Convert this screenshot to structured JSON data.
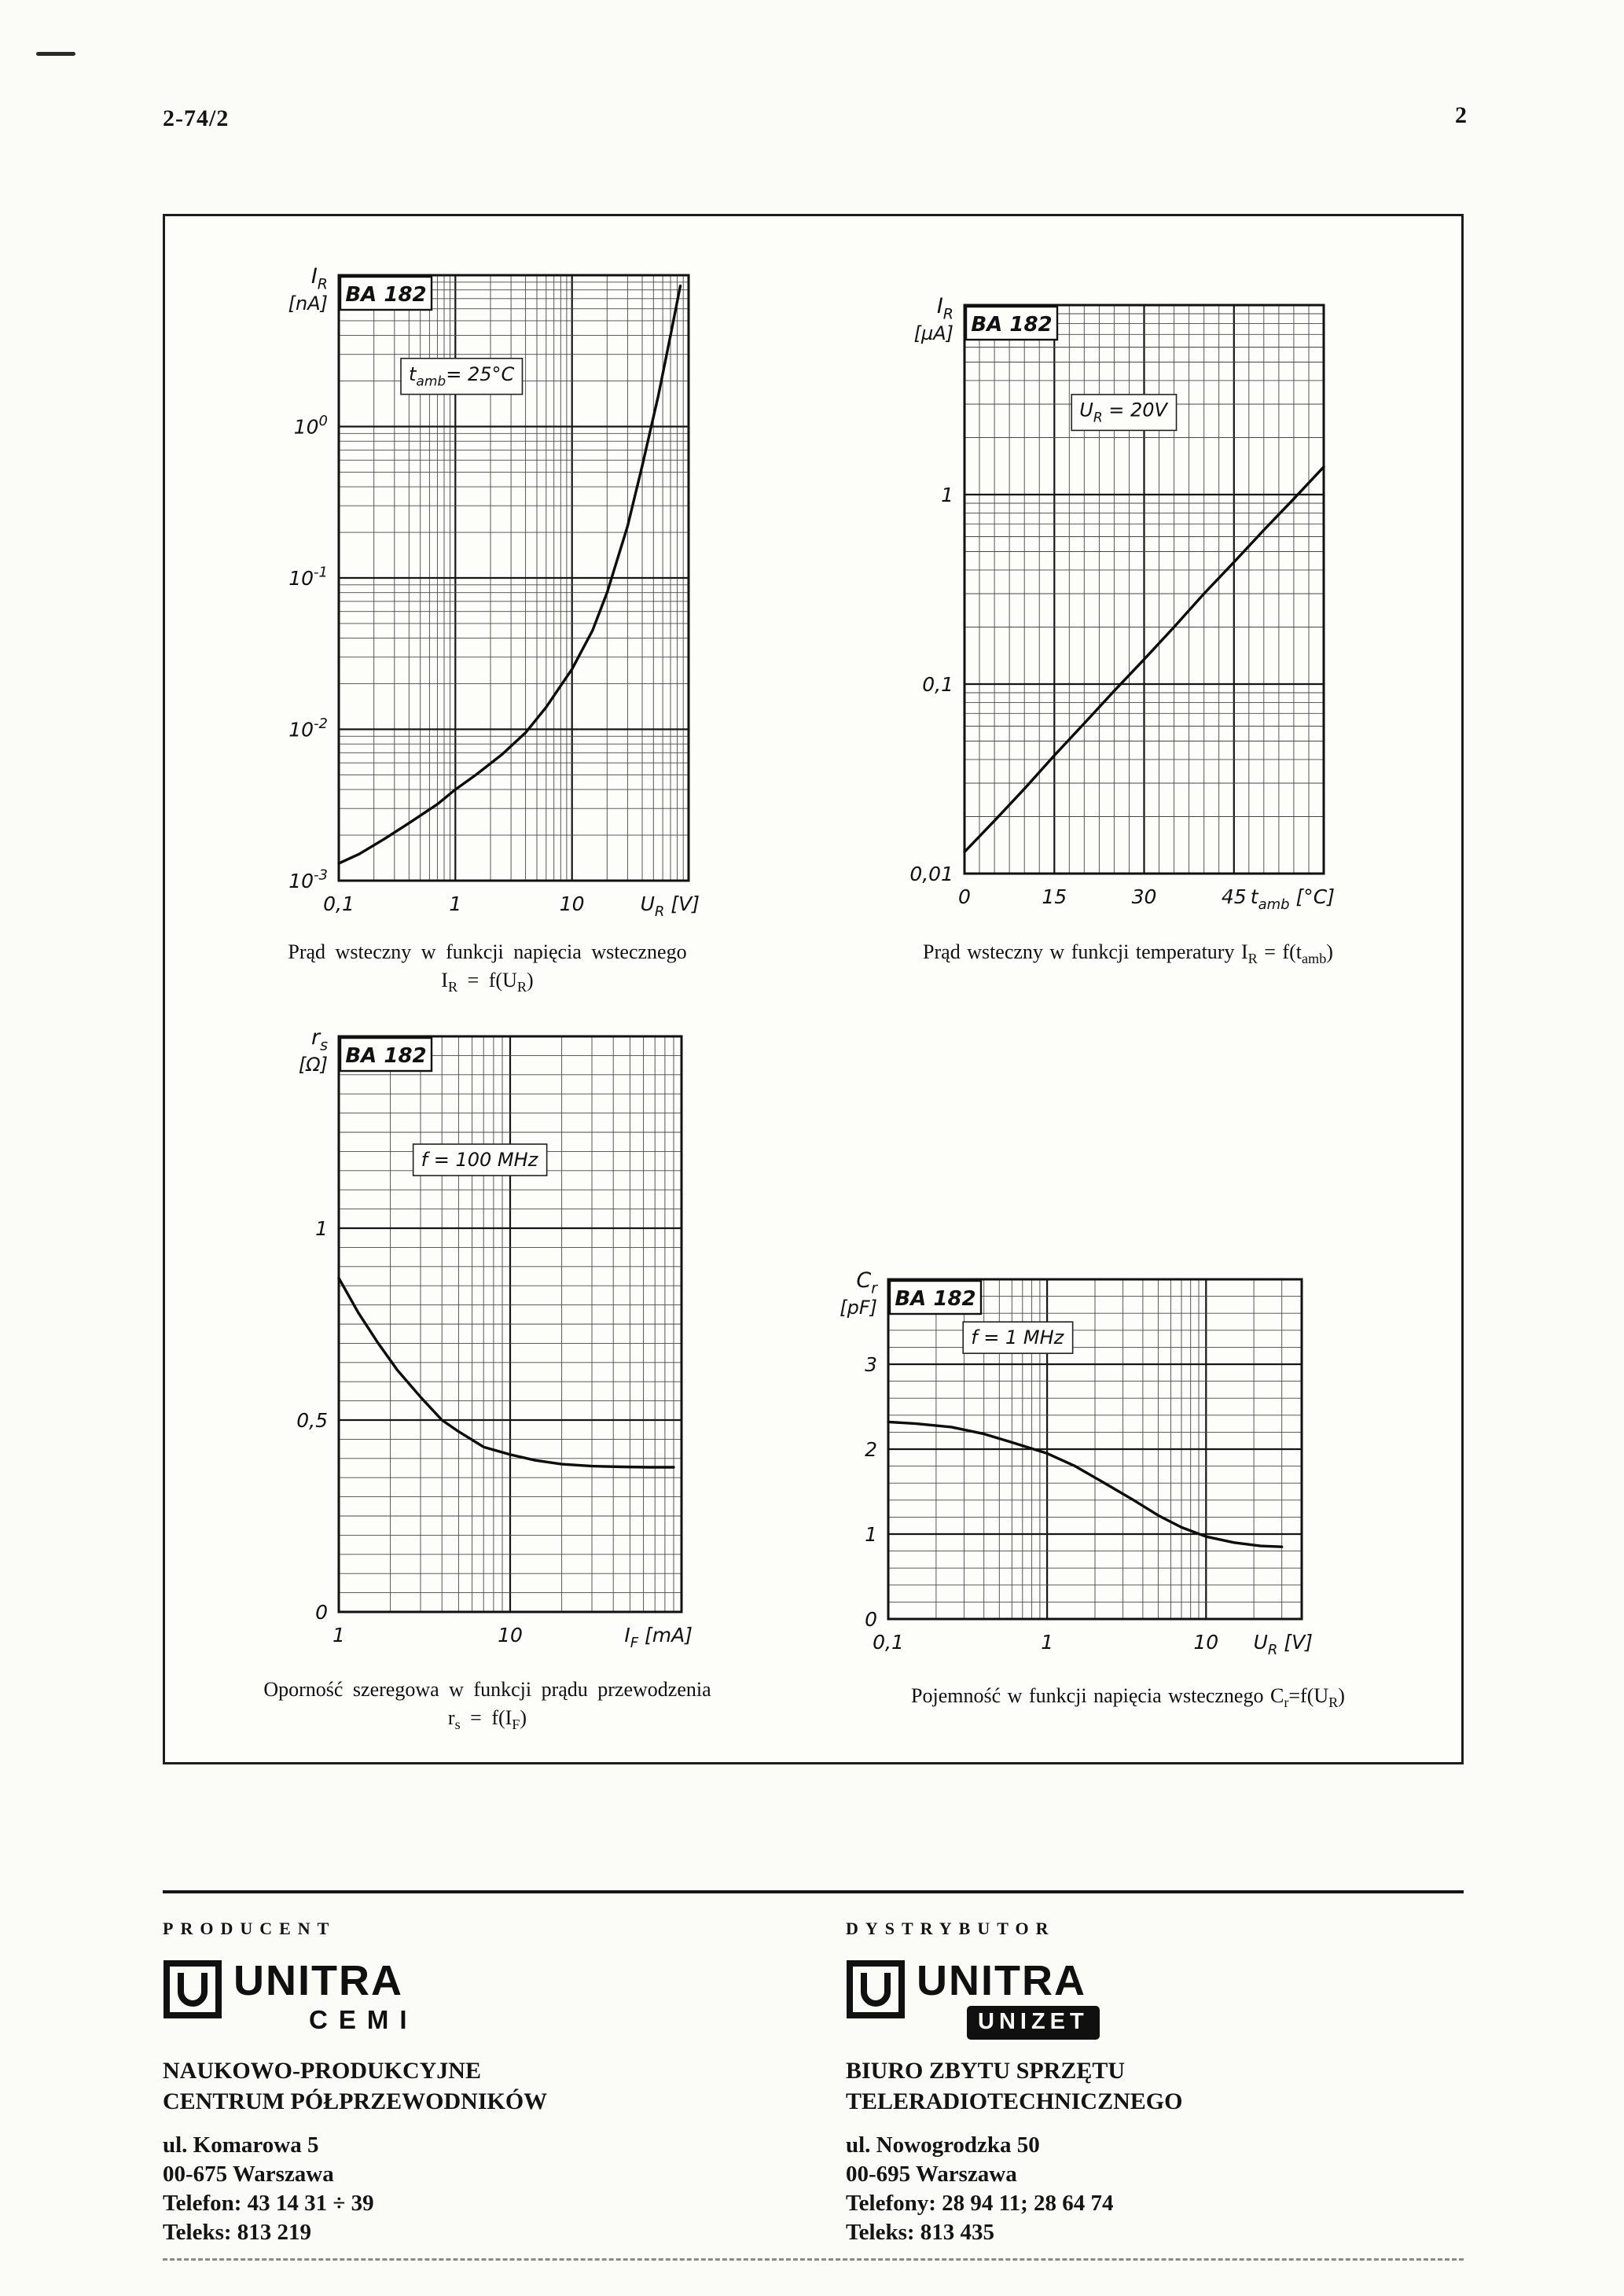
{
  "page": {
    "doc_number": "2-74/2",
    "page_number": "2"
  },
  "chart_data": [
    {
      "type": "line",
      "device": "BA 182",
      "annotation": "t_{amb}= 25°C",
      "ylabel": [
        "I_{R}",
        "[nA]"
      ],
      "x": {
        "scale": "log",
        "min": 0.1,
        "max": 100,
        "unit": "U_{R} [V]",
        "ticks": [
          [
            "0,1",
            0.1
          ],
          [
            "1",
            1
          ],
          [
            "10",
            10
          ]
        ]
      },
      "y": {
        "scale": "log",
        "min": 0.001,
        "max": 10,
        "ticks": [
          [
            "10^{0}",
            1
          ],
          [
            "10^{-1}",
            0.1
          ],
          [
            "10^{-2}",
            0.01
          ],
          [
            "10^{-3}",
            0.001
          ]
        ]
      },
      "points": [
        [
          0.1,
          0.0013
        ],
        [
          0.15,
          0.0015
        ],
        [
          0.25,
          0.0019
        ],
        [
          0.4,
          0.0024
        ],
        [
          0.7,
          0.0032
        ],
        [
          1,
          0.004
        ],
        [
          1.5,
          0.005
        ],
        [
          2.5,
          0.0068
        ],
        [
          4,
          0.0095
        ],
        [
          6,
          0.014
        ],
        [
          10,
          0.025
        ],
        [
          15,
          0.045
        ],
        [
          20,
          0.08
        ],
        [
          30,
          0.22
        ],
        [
          40,
          0.55
        ],
        [
          55,
          1.6
        ],
        [
          70,
          4
        ],
        [
          85,
          8.5
        ]
      ],
      "caption": [
        "Prąd wsteczny w funkcji napięcia wstecznego",
        "I_{R} = f(U_{R})"
      ]
    },
    {
      "type": "line",
      "device": "BA 182",
      "annotation": "U_{R} = 20V",
      "ylabel": [
        "I_{R}",
        "[µA]"
      ],
      "x": {
        "scale": "linear",
        "min": 0,
        "max": 60,
        "minor": 2.5,
        "major": 15,
        "unit": "t_{amb} [°C]",
        "ticks": [
          [
            "0",
            0
          ],
          [
            "15",
            15
          ],
          [
            "30",
            30
          ],
          [
            "45",
            45
          ]
        ]
      },
      "y": {
        "scale": "log",
        "min": 0.01,
        "max": 10,
        "ticks": [
          [
            "1",
            1
          ],
          [
            "0,1",
            0.1
          ],
          [
            "0,01",
            0.01
          ]
        ]
      },
      "points": [
        [
          0,
          0.013
        ],
        [
          5,
          0.019
        ],
        [
          10,
          0.028
        ],
        [
          15,
          0.042
        ],
        [
          20,
          0.062
        ],
        [
          25,
          0.092
        ],
        [
          30,
          0.135
        ],
        [
          35,
          0.2
        ],
        [
          40,
          0.3
        ],
        [
          45,
          0.44
        ],
        [
          50,
          0.65
        ],
        [
          55,
          0.95
        ],
        [
          60,
          1.4
        ]
      ],
      "caption": [
        "Prąd wsteczny w funkcji temperatury I_{R} = f(t_{amb})"
      ]
    },
    {
      "type": "line",
      "device": "BA 182",
      "annotation": "f = 100 MHz",
      "ylabel": [
        "r_{s}",
        "[Ω]"
      ],
      "x": {
        "scale": "log",
        "min": 1,
        "max": 100,
        "unit": "I_{F} [mA]",
        "ticks": [
          [
            "1",
            1
          ],
          [
            "10",
            10
          ]
        ]
      },
      "y": {
        "scale": "linear",
        "min": 0,
        "max": 1.5,
        "minor": 0.05,
        "major": 0.5,
        "ticks": [
          [
            "1",
            1
          ],
          [
            "0,5",
            0.5
          ],
          [
            "0",
            0
          ]
        ]
      },
      "points": [
        [
          1,
          0.87
        ],
        [
          1.3,
          0.78
        ],
        [
          1.7,
          0.7
        ],
        [
          2.2,
          0.63
        ],
        [
          3,
          0.56
        ],
        [
          4,
          0.5
        ],
        [
          5,
          0.47
        ],
        [
          7,
          0.43
        ],
        [
          10,
          0.41
        ],
        [
          14,
          0.395
        ],
        [
          20,
          0.385
        ],
        [
          30,
          0.38
        ],
        [
          45,
          0.378
        ],
        [
          65,
          0.377
        ],
        [
          90,
          0.377
        ]
      ],
      "caption": [
        "Oporność szeregowa w funkcji prądu przewodzenia",
        "r_{s} = f(I_{F})"
      ]
    },
    {
      "type": "line",
      "device": "BA 182",
      "annotation": "f = 1 MHz",
      "ylabel": [
        "C_{r}",
        "[pF]"
      ],
      "x": {
        "scale": "log",
        "min": 0.1,
        "max": 40,
        "unit": "U_{R} [V]",
        "ticks": [
          [
            "0,1",
            0.1
          ],
          [
            "1",
            1
          ],
          [
            "10",
            10
          ]
        ]
      },
      "y": {
        "scale": "linear",
        "min": 0,
        "max": 4,
        "minor": 0.2,
        "major": 1,
        "ticks": [
          [
            "3",
            3
          ],
          [
            "2",
            2
          ],
          [
            "1",
            1
          ],
          [
            "0",
            0
          ]
        ]
      },
      "points": [
        [
          0.1,
          2.32
        ],
        [
          0.15,
          2.3
        ],
        [
          0.25,
          2.26
        ],
        [
          0.4,
          2.18
        ],
        [
          0.6,
          2.08
        ],
        [
          1,
          1.95
        ],
        [
          1.5,
          1.8
        ],
        [
          2.2,
          1.62
        ],
        [
          3.5,
          1.4
        ],
        [
          5,
          1.22
        ],
        [
          7,
          1.08
        ],
        [
          10,
          0.97
        ],
        [
          15,
          0.9
        ],
        [
          22,
          0.86
        ],
        [
          30,
          0.85
        ]
      ],
      "caption": [
        "Pojemność w funkcji napięcia wstecznego C_{r}=f(U_{R})"
      ]
    }
  ],
  "footer": {
    "producer": {
      "heading": "PRODUCENT",
      "brand": "UNITRA",
      "brand_sub": "CEMI",
      "org_lines": [
        "NAUKOWO-PRODUKCYJNE",
        "CENTRUM PÓŁPRZEWODNIKÓW"
      ],
      "address_lines": [
        "ul. Komarowa 5",
        "00-675 Warszawa",
        "Telefon: 43 14 31 ÷ 39",
        "Teleks: 813 219"
      ]
    },
    "distributor": {
      "heading": "DYSTRYBUTOR",
      "brand": "UNITRA",
      "brand_sub": "UNIZET",
      "org_lines": [
        "BIURO ZBYTU SPRZĘTU",
        "TELERADIOTECHNICZNEGO"
      ],
      "address_lines": [
        "ul. Nowogrodzka 50",
        "00-695 Warszawa",
        "Telefony: 28 94 11; 28 64 74",
        "Teleks: 813 435"
      ]
    }
  }
}
